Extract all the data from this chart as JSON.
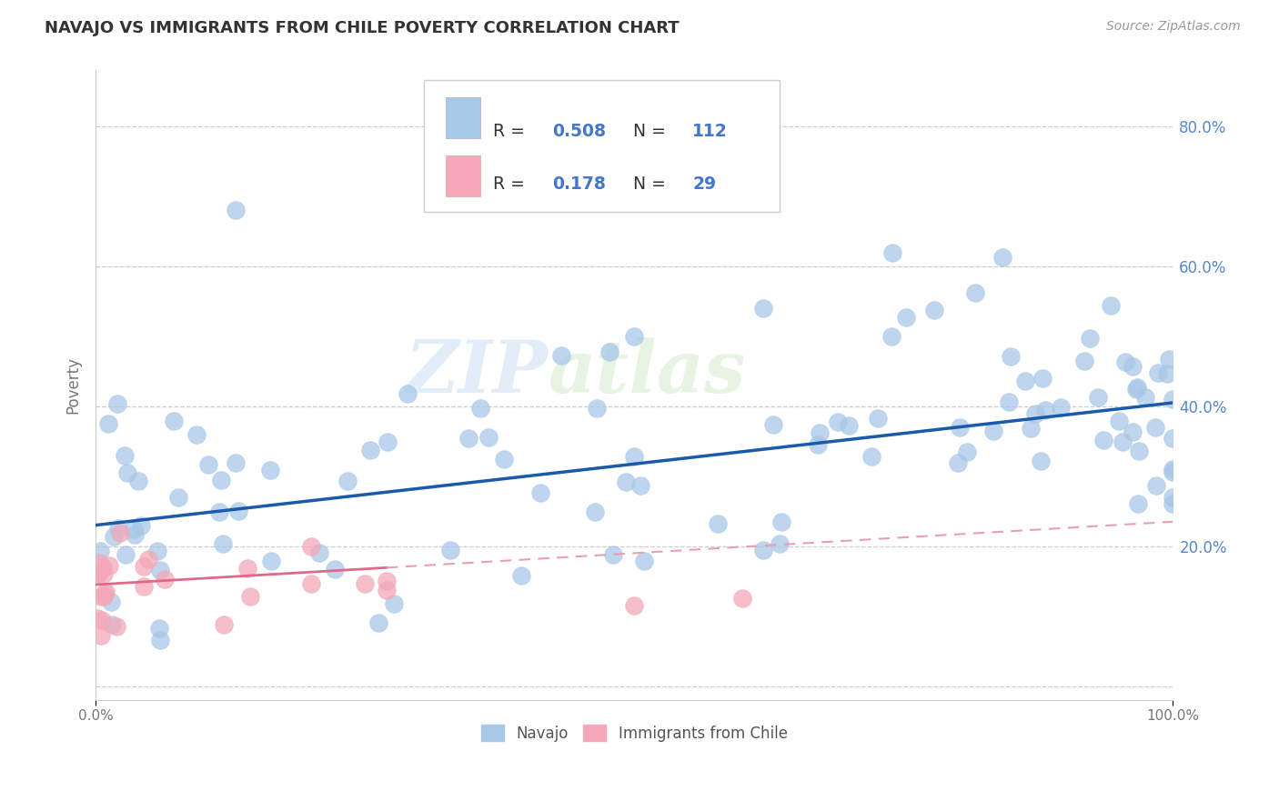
{
  "title": "NAVAJO VS IMMIGRANTS FROM CHILE POVERTY CORRELATION CHART",
  "source": "Source: ZipAtlas.com",
  "ylabel": "Poverty",
  "yticks": [
    0.0,
    0.2,
    0.4,
    0.6,
    0.8
  ],
  "ytick_labels": [
    "",
    "20.0%",
    "40.0%",
    "60.0%",
    "80.0%"
  ],
  "xlim": [
    0.0,
    1.0
  ],
  "ylim": [
    -0.02,
    0.88
  ],
  "navajo_R": 0.508,
  "navajo_N": 112,
  "chile_R": 0.178,
  "chile_N": 29,
  "navajo_color": "#a8c8e8",
  "chile_color": "#f4a8b8",
  "navajo_line_color": "#1a5aaa",
  "chile_solid_color": "#e06888",
  "chile_dash_color": "#e8a0b0",
  "grid_color": "#cccccc",
  "background_color": "#ffffff",
  "watermark_zip": "ZIP",
  "watermark_atlas": "atlas",
  "legend_labels": [
    "Navajo",
    "Immigrants from Chile"
  ],
  "nav_intercept": 0.23,
  "nav_slope": 0.175,
  "chile_intercept": 0.145,
  "chile_slope": 0.09
}
